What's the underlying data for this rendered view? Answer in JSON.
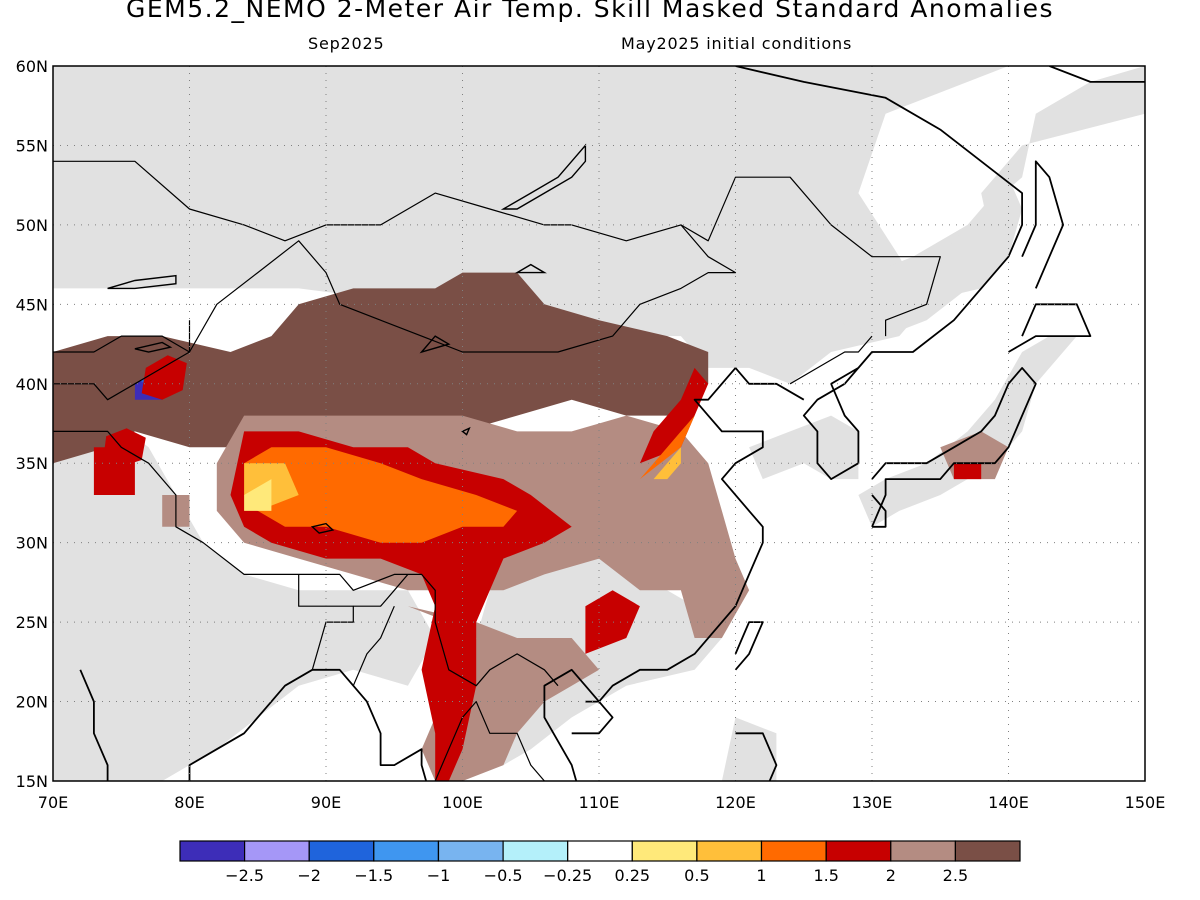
{
  "title": "GEM5.2_NEMO 2-Meter Air Temp. Skill Masked Standard Anomalies",
  "subtitle_left": "Sep2025",
  "subtitle_right": "May2025 initial conditions",
  "map": {
    "lon_range": [
      70,
      150
    ],
    "lat_range": [
      15,
      60
    ],
    "lon_ticks": [
      70,
      80,
      90,
      100,
      110,
      120,
      130,
      140,
      150
    ],
    "lat_ticks": [
      15,
      20,
      25,
      30,
      35,
      40,
      45,
      50,
      55,
      60
    ],
    "lon_tick_labels": [
      "70E",
      "80E",
      "90E",
      "100E",
      "110E",
      "120E",
      "130E",
      "140E",
      "150E"
    ],
    "lat_tick_labels": [
      "15N",
      "20N",
      "25N",
      "30N",
      "35N",
      "40N",
      "45N",
      "50N",
      "55N",
      "60N"
    ],
    "gridlines": "dotted",
    "colors": {
      "masked": "#e1e1e1",
      "pos_0_25": "#ffe97a",
      "pos_0_5": "#ffbf3a",
      "pos_1": "#ff6a00",
      "pos_1_5": "#c70000",
      "pos_2": "#b48c82",
      "pos_2_5": "#7a4f46",
      "neg_2_5": "#3d2db8",
      "neg_2": "#a597f7",
      "neg_1_5": "#1f64dc",
      "neg_1": "#3f96f0",
      "neg_0_5": "#78b4f0",
      "neg_0_25": "#b4f0fa"
    }
  },
  "colorbar": {
    "colors": [
      "#3d2db8",
      "#a597f7",
      "#1f64dc",
      "#3f96f0",
      "#78b4f0",
      "#b4f0fa",
      "#ffffff",
      "#ffe97a",
      "#ffbf3a",
      "#ff6a00",
      "#c70000",
      "#b48c82",
      "#7a4f46"
    ],
    "labels": [
      "−2.5",
      "−2",
      "−1.5",
      "−1",
      "−0.5",
      "−0.25",
      "0.25",
      "0.5",
      "1",
      "1.5",
      "2",
      "2.5"
    ]
  }
}
